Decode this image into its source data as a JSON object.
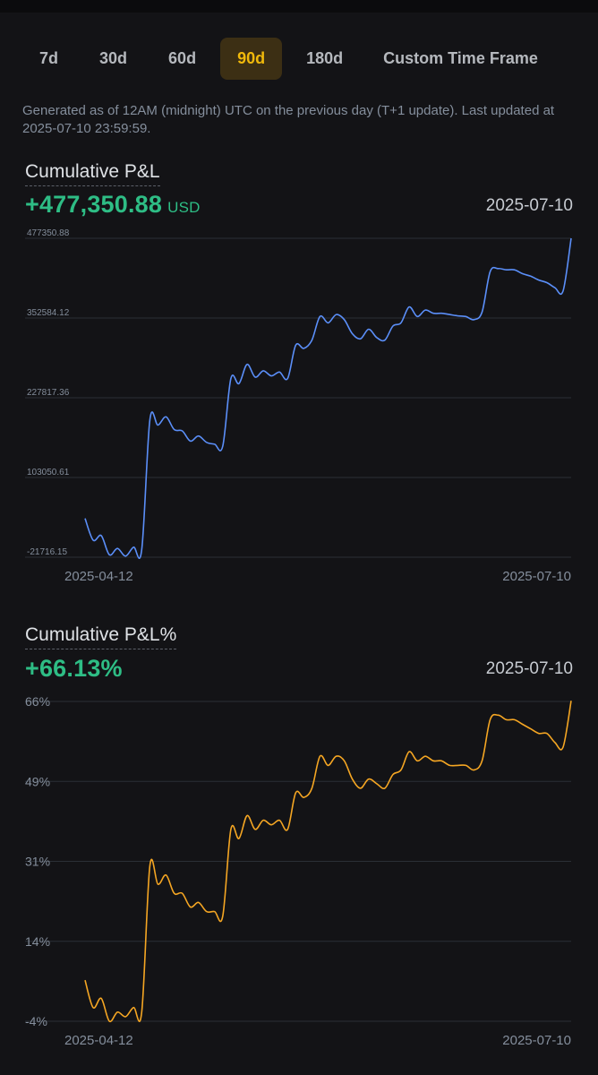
{
  "tabs": [
    {
      "label": "7d",
      "active": false
    },
    {
      "label": "30d",
      "active": false
    },
    {
      "label": "60d",
      "active": false
    },
    {
      "label": "90d",
      "active": true
    },
    {
      "label": "180d",
      "active": false
    },
    {
      "label": "Custom Time Frame",
      "active": false
    }
  ],
  "note": "Generated as of 12AM (midnight) UTC on the previous day (T+1 update). Last updated at 2025-07-10 23:59:59.",
  "colors": {
    "positive": "#2ebd85",
    "accent": "#f0b90b",
    "line_pnl": "#5b8ff9",
    "line_pct": "#f5a623"
  },
  "pnl": {
    "title": "Cumulative P&L",
    "value": "+477,350.88",
    "unit": "USD",
    "date": "2025-07-10"
  },
  "pnl_pct": {
    "title": "Cumulative P&L%",
    "value": "+66.13%",
    "date": "2025-07-10"
  },
  "chart_data": [
    {
      "type": "line",
      "title": "Cumulative P&L",
      "x_start_label": "2025-04-12",
      "x_end_label": "2025-07-10",
      "yticks": [
        "477350.88",
        "352584.12",
        "227817.36",
        "103050.61",
        "-21716.15"
      ],
      "ylim": [
        -21716.15,
        477350.88
      ],
      "grid": true,
      "series": [
        {
          "values": [
            39000,
            5000,
            12000,
            -18000,
            -8000,
            -20000,
            -6000,
            -10000,
            193000,
            185000,
            198000,
            178000,
            176000,
            160000,
            168000,
            158000,
            155000,
            152000,
            258000,
            250000,
            280000,
            260000,
            270000,
            262000,
            268000,
            258000,
            310000,
            305000,
            318000,
            355000,
            345000,
            358000,
            350000,
            328000,
            320000,
            335000,
            322000,
            318000,
            340000,
            345000,
            370000,
            355000,
            365000,
            360000,
            360000,
            358000,
            356000,
            355000,
            350000,
            362000,
            425000,
            430000,
            428000,
            428000,
            422000,
            418000,
            412000,
            408000,
            400000,
            395000,
            477350.88
          ]
        }
      ]
    },
    {
      "type": "line",
      "title": "Cumulative P&L%",
      "x_start_label": "2025-04-12",
      "x_end_label": "2025-07-10",
      "yticks": [
        "66%",
        "49%",
        "31%",
        "14%",
        "-4%"
      ],
      "ylim": [
        -4,
        66
      ],
      "grid": true,
      "series": [
        {
          "values": [
            5,
            -1,
            1,
            -4,
            -2,
            -3,
            -1,
            -2,
            30,
            26,
            28,
            24,
            24,
            21,
            22,
            20,
            20,
            19,
            38,
            36,
            41,
            38,
            40,
            39,
            40,
            38,
            46,
            45,
            47,
            54,
            52,
            54,
            53,
            49,
            47,
            49,
            48,
            47,
            50,
            51,
            55,
            53,
            54,
            53,
            53,
            52,
            52,
            52,
            51,
            53,
            62,
            63,
            62,
            62,
            61,
            60,
            59,
            59,
            57,
            56,
            66.13
          ]
        }
      ]
    }
  ]
}
